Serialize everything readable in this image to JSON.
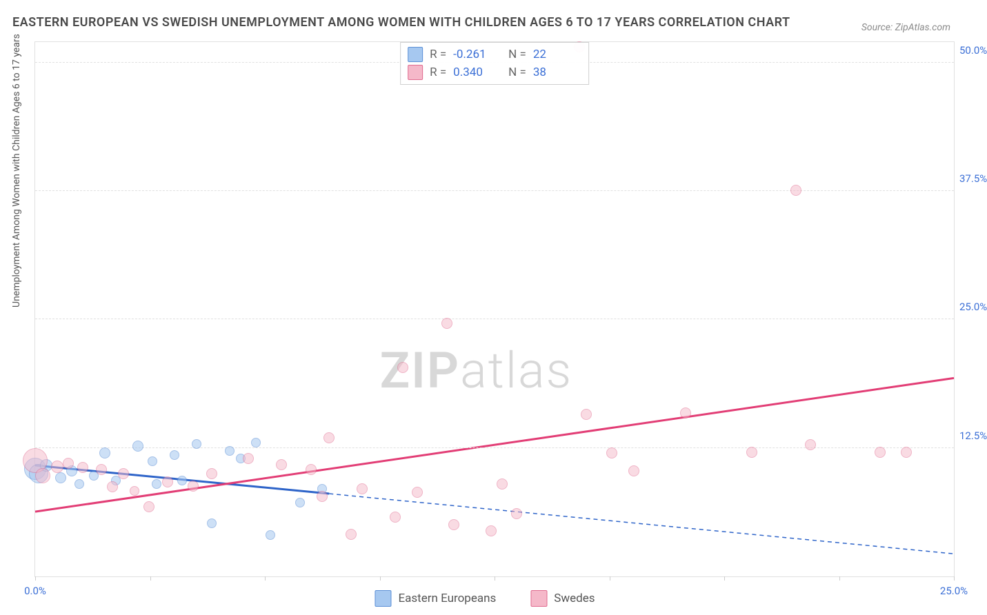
{
  "title": "EASTERN EUROPEAN VS SWEDISH UNEMPLOYMENT AMONG WOMEN WITH CHILDREN AGES 6 TO 17 YEARS CORRELATION CHART",
  "source": "Source: ZipAtlas.com",
  "ylabel": "Unemployment Among Women with Children Ages 6 to 17 years",
  "watermark_a": "ZIP",
  "watermark_b": "atlas",
  "chart": {
    "type": "scatter",
    "xlim": [
      0,
      25
    ],
    "ylim": [
      0,
      52
    ],
    "xtick_values": [
      0,
      12.5,
      25
    ],
    "xtick_labels": [
      "0.0%",
      "",
      "25.0%"
    ],
    "xtick_marks": [
      0,
      3.125,
      6.25,
      9.375,
      12.5,
      15.625,
      18.75,
      21.875,
      25
    ],
    "ytick_values": [
      12.5,
      25,
      37.5,
      50
    ],
    "ytick_labels": [
      "12.5%",
      "25.0%",
      "37.5%",
      "50.0%"
    ],
    "grid_color": "#e0e0e0",
    "background_color": "#ffffff",
    "series": [
      {
        "name": "Eastern Europeans",
        "fill_color": "#a6c8f0",
        "stroke_color": "#5b8fd6",
        "fill_opacity": 0.55,
        "trend_color": "#2e64c9",
        "trend_width_solid": 3,
        "trend_width_dash": 1.5,
        "trend_dash": "6,5",
        "solid_x_end": 8.0,
        "R": "-0.261",
        "N": "22",
        "trend": {
          "x1": 0,
          "y1": 10.8,
          "x2": 25,
          "y2": 2.2
        },
        "points": [
          {
            "x": 0.0,
            "y": 10.5,
            "r": 16
          },
          {
            "x": 0.1,
            "y": 10.0,
            "r": 14
          },
          {
            "x": 0.3,
            "y": 10.8,
            "r": 9
          },
          {
            "x": 0.7,
            "y": 9.6,
            "r": 8
          },
          {
            "x": 1.0,
            "y": 10.3,
            "r": 8
          },
          {
            "x": 1.2,
            "y": 9.0,
            "r": 7
          },
          {
            "x": 1.6,
            "y": 9.8,
            "r": 7
          },
          {
            "x": 1.9,
            "y": 12.0,
            "r": 8
          },
          {
            "x": 2.2,
            "y": 9.3,
            "r": 7
          },
          {
            "x": 2.8,
            "y": 12.7,
            "r": 8
          },
          {
            "x": 3.2,
            "y": 11.2,
            "r": 7
          },
          {
            "x": 3.3,
            "y": 9.0,
            "r": 7
          },
          {
            "x": 3.8,
            "y": 11.8,
            "r": 7
          },
          {
            "x": 4.0,
            "y": 9.3,
            "r": 7
          },
          {
            "x": 4.4,
            "y": 12.9,
            "r": 7
          },
          {
            "x": 4.8,
            "y": 5.2,
            "r": 7
          },
          {
            "x": 5.3,
            "y": 12.2,
            "r": 7
          },
          {
            "x": 5.6,
            "y": 11.5,
            "r": 7
          },
          {
            "x": 6.0,
            "y": 13.0,
            "r": 7
          },
          {
            "x": 6.4,
            "y": 4.0,
            "r": 7
          },
          {
            "x": 7.2,
            "y": 7.2,
            "r": 7
          },
          {
            "x": 7.8,
            "y": 8.5,
            "r": 7
          }
        ]
      },
      {
        "name": "Swedes",
        "fill_color": "#f5b8c9",
        "stroke_color": "#e06a8e",
        "fill_opacity": 0.5,
        "trend_color": "#e23d75",
        "trend_width_solid": 3,
        "trend_width_dash": 1.5,
        "trend_dash": "6,5",
        "solid_x_end": 25.0,
        "R": "0.340",
        "N": "38",
        "trend": {
          "x1": 0,
          "y1": 6.3,
          "x2": 25,
          "y2": 19.3
        },
        "points": [
          {
            "x": 0.0,
            "y": 11.3,
            "r": 18
          },
          {
            "x": 0.2,
            "y": 9.8,
            "r": 11
          },
          {
            "x": 0.6,
            "y": 10.7,
            "r": 9
          },
          {
            "x": 0.9,
            "y": 11.0,
            "r": 8
          },
          {
            "x": 1.3,
            "y": 10.6,
            "r": 8
          },
          {
            "x": 1.8,
            "y": 10.4,
            "r": 8
          },
          {
            "x": 2.1,
            "y": 8.7,
            "r": 8
          },
          {
            "x": 2.4,
            "y": 10.0,
            "r": 8
          },
          {
            "x": 2.7,
            "y": 8.3,
            "r": 7
          },
          {
            "x": 3.1,
            "y": 6.8,
            "r": 8
          },
          {
            "x": 3.6,
            "y": 9.2,
            "r": 8
          },
          {
            "x": 4.3,
            "y": 8.8,
            "r": 8
          },
          {
            "x": 4.8,
            "y": 10.0,
            "r": 8
          },
          {
            "x": 5.8,
            "y": 11.5,
            "r": 8
          },
          {
            "x": 6.7,
            "y": 10.9,
            "r": 8
          },
          {
            "x": 7.5,
            "y": 10.4,
            "r": 8
          },
          {
            "x": 7.8,
            "y": 7.8,
            "r": 8
          },
          {
            "x": 8.0,
            "y": 13.5,
            "r": 8
          },
          {
            "x": 8.6,
            "y": 4.1,
            "r": 8
          },
          {
            "x": 8.9,
            "y": 8.5,
            "r": 8
          },
          {
            "x": 9.8,
            "y": 5.8,
            "r": 8
          },
          {
            "x": 10.0,
            "y": 20.3,
            "r": 8
          },
          {
            "x": 10.4,
            "y": 8.2,
            "r": 8
          },
          {
            "x": 11.2,
            "y": 24.6,
            "r": 8
          },
          {
            "x": 11.4,
            "y": 5.0,
            "r": 8
          },
          {
            "x": 12.4,
            "y": 4.4,
            "r": 8
          },
          {
            "x": 12.7,
            "y": 9.0,
            "r": 8
          },
          {
            "x": 13.1,
            "y": 6.1,
            "r": 8
          },
          {
            "x": 14.8,
            "y": 51.5,
            "r": 8
          },
          {
            "x": 15.0,
            "y": 15.8,
            "r": 8
          },
          {
            "x": 15.7,
            "y": 12.0,
            "r": 8
          },
          {
            "x": 16.3,
            "y": 10.3,
            "r": 8
          },
          {
            "x": 17.7,
            "y": 15.9,
            "r": 8
          },
          {
            "x": 19.5,
            "y": 12.1,
            "r": 8
          },
          {
            "x": 20.7,
            "y": 37.6,
            "r": 8
          },
          {
            "x": 21.1,
            "y": 12.8,
            "r": 8
          },
          {
            "x": 23.0,
            "y": 12.1,
            "r": 8
          },
          {
            "x": 23.7,
            "y": 12.1,
            "r": 8
          }
        ]
      }
    ]
  },
  "stat_labels": {
    "R": "R =",
    "N": "N ="
  },
  "legend_series1": "Eastern Europeans",
  "legend_series2": "Swedes"
}
